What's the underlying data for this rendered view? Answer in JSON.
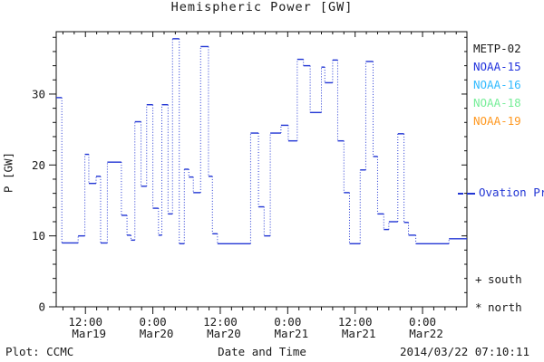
{
  "title": "Hemispheric Power [GW]",
  "axes": {
    "ylabel": "P [GW]",
    "xlabel": "Date and Time"
  },
  "footer": {
    "left": "Plot: CCMC",
    "center": "Date and Time",
    "right": "2014/03/22 07:10:11"
  },
  "legend": {
    "satellites": [
      {
        "label": "METP-02",
        "color": "#1a1a1a"
      },
      {
        "label": "NOAA-15",
        "color": "#2233dd"
      },
      {
        "label": "NOAA-16",
        "color": "#33bbff"
      },
      {
        "label": "NOAA-18",
        "color": "#77ee99"
      },
      {
        "label": "NOAA-19",
        "color": "#ff9922"
      }
    ],
    "line_label": "Ovation Prime HPI",
    "line_color": "#2236d4",
    "markers": [
      {
        "symbol": "+",
        "label": "south"
      },
      {
        "symbol": "*",
        "label": "north"
      }
    ]
  },
  "chart_data": {
    "type": "line",
    "subtype": "step-stairs",
    "title": "Hemispheric Power [GW]",
    "xlabel": "Date and Time",
    "ylabel": "P [GW]",
    "ylim": [
      0,
      38.8
    ],
    "yticks": [
      0,
      10,
      20,
      30
    ],
    "y_minor_step": 2,
    "xlim_hours_from_mar19_00": [
      6.8,
      79.9
    ],
    "x_minor_step_hours": 2,
    "xticks": [
      {
        "hour": 12,
        "time": "12:00",
        "date": "Mar19"
      },
      {
        "hour": 24,
        "time": "0:00",
        "date": "Mar20"
      },
      {
        "hour": 36,
        "time": "12:00",
        "date": "Mar20"
      },
      {
        "hour": 48,
        "time": "0:00",
        "date": "Mar21"
      },
      {
        "hour": 60,
        "time": "12:00",
        "date": "Mar21"
      },
      {
        "hour": 72,
        "time": "0:00",
        "date": "Mar22"
      }
    ],
    "grid": false,
    "legend_position": "right-outside",
    "series": [
      {
        "name": "Ovation Prime HPI",
        "color": "#2236d4",
        "line_style": "solid horizontal runs, dotted vertical transitions",
        "units": "GW",
        "steps_hour_gw": [
          [
            6.8,
            29.5
          ],
          [
            7.8,
            9.0
          ],
          [
            10.7,
            10.0
          ],
          [
            11.9,
            21.5
          ],
          [
            12.6,
            17.4
          ],
          [
            13.9,
            18.4
          ],
          [
            14.7,
            9.0
          ],
          [
            15.9,
            20.4
          ],
          [
            18.4,
            12.9
          ],
          [
            19.4,
            10.1
          ],
          [
            20.1,
            9.4
          ],
          [
            20.8,
            26.1
          ],
          [
            21.9,
            17.0
          ],
          [
            22.9,
            28.5
          ],
          [
            24.0,
            13.9
          ],
          [
            25.0,
            10.1
          ],
          [
            25.6,
            28.5
          ],
          [
            26.7,
            13.1
          ],
          [
            27.5,
            37.8
          ],
          [
            28.7,
            8.9
          ],
          [
            29.6,
            19.4
          ],
          [
            30.4,
            18.3
          ],
          [
            31.2,
            16.1
          ],
          [
            32.5,
            36.7
          ],
          [
            33.9,
            18.4
          ],
          [
            34.6,
            10.3
          ],
          [
            35.5,
            8.9
          ],
          [
            41.4,
            24.5
          ],
          [
            42.8,
            14.1
          ],
          [
            43.8,
            10.0
          ],
          [
            44.9,
            24.5
          ],
          [
            46.8,
            25.6
          ],
          [
            48.1,
            23.4
          ],
          [
            49.7,
            34.9
          ],
          [
            50.8,
            34.0
          ],
          [
            52.0,
            27.4
          ],
          [
            54.0,
            33.8
          ],
          [
            54.6,
            31.6
          ],
          [
            56.0,
            34.8
          ],
          [
            56.9,
            23.4
          ],
          [
            58.0,
            16.1
          ],
          [
            59.0,
            8.9
          ],
          [
            60.9,
            19.3
          ],
          [
            61.9,
            34.6
          ],
          [
            63.2,
            21.2
          ],
          [
            64.0,
            13.1
          ],
          [
            65.1,
            10.9
          ],
          [
            66.0,
            12.0
          ],
          [
            67.6,
            24.4
          ],
          [
            68.7,
            11.9
          ],
          [
            69.5,
            10.1
          ],
          [
            70.8,
            8.9
          ],
          [
            76.7,
            9.6
          ]
        ]
      }
    ]
  }
}
